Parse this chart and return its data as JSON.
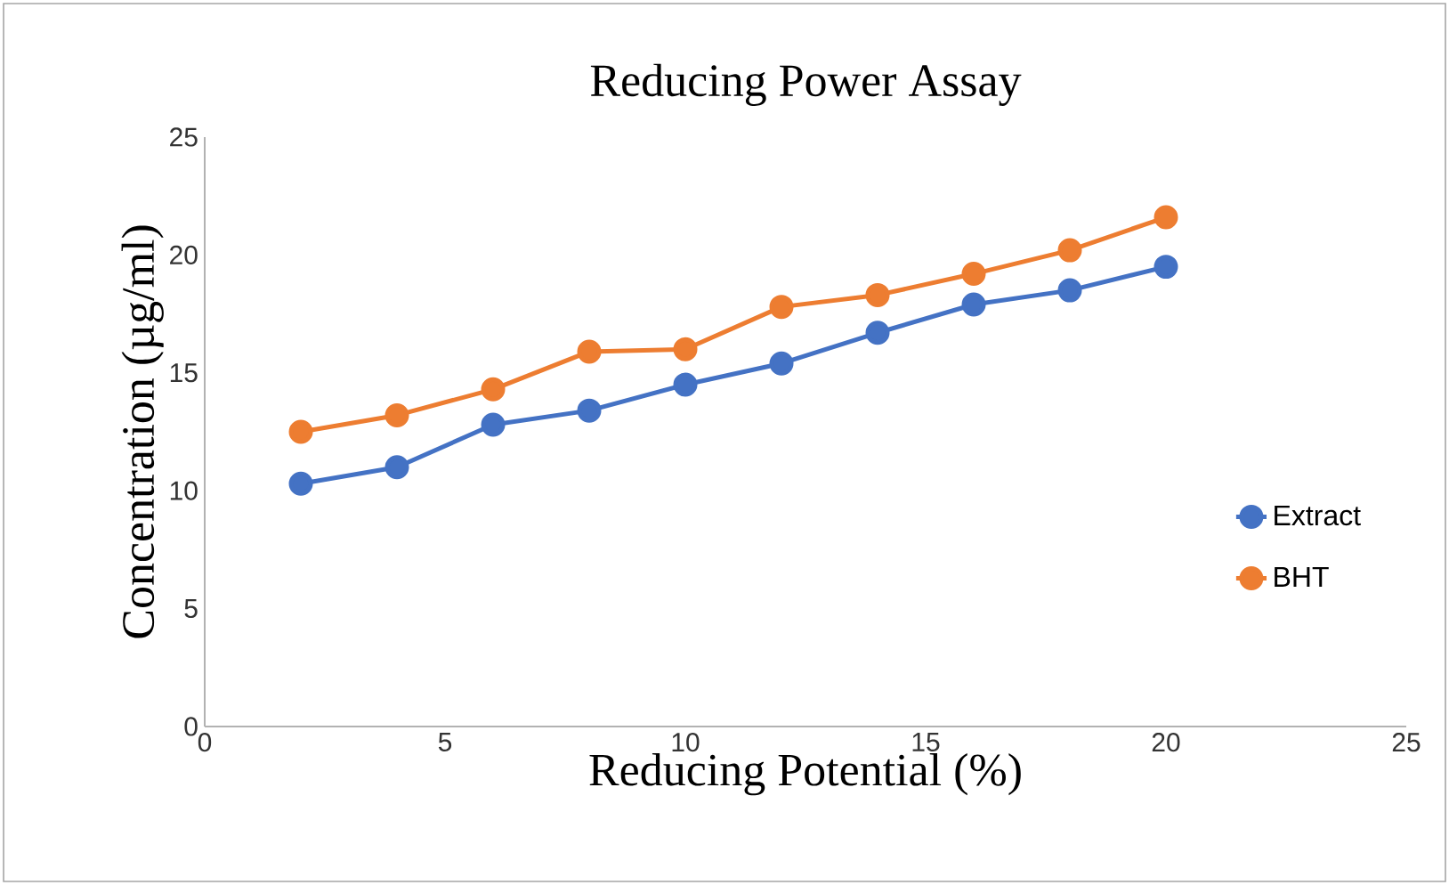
{
  "chart_data": {
    "type": "line",
    "title": "Reducing Power Assay",
    "xlabel": "Reducing Potential (%)",
    "ylabel": "Concentration (µg/ml)",
    "x": [
      2,
      4,
      6,
      8,
      10,
      12,
      14,
      16,
      18,
      20
    ],
    "series": [
      {
        "name": "Extract",
        "color": "#4472c4",
        "values": [
          10.3,
          11.0,
          12.8,
          13.4,
          14.5,
          15.4,
          16.7,
          17.9,
          18.5,
          19.5
        ]
      },
      {
        "name": "BHT",
        "color": "#ed7d31",
        "values": [
          12.5,
          13.2,
          14.3,
          15.9,
          16.0,
          17.8,
          18.3,
          19.2,
          20.2,
          21.6
        ]
      }
    ],
    "xlim": [
      0,
      25
    ],
    "ylim": [
      0,
      25
    ],
    "xticks": [
      0,
      5,
      10,
      15,
      20,
      25
    ],
    "yticks": [
      0,
      5,
      10,
      15,
      20,
      25
    ],
    "grid": false,
    "legend": "right",
    "marker": "circle",
    "line_style": "solid"
  }
}
